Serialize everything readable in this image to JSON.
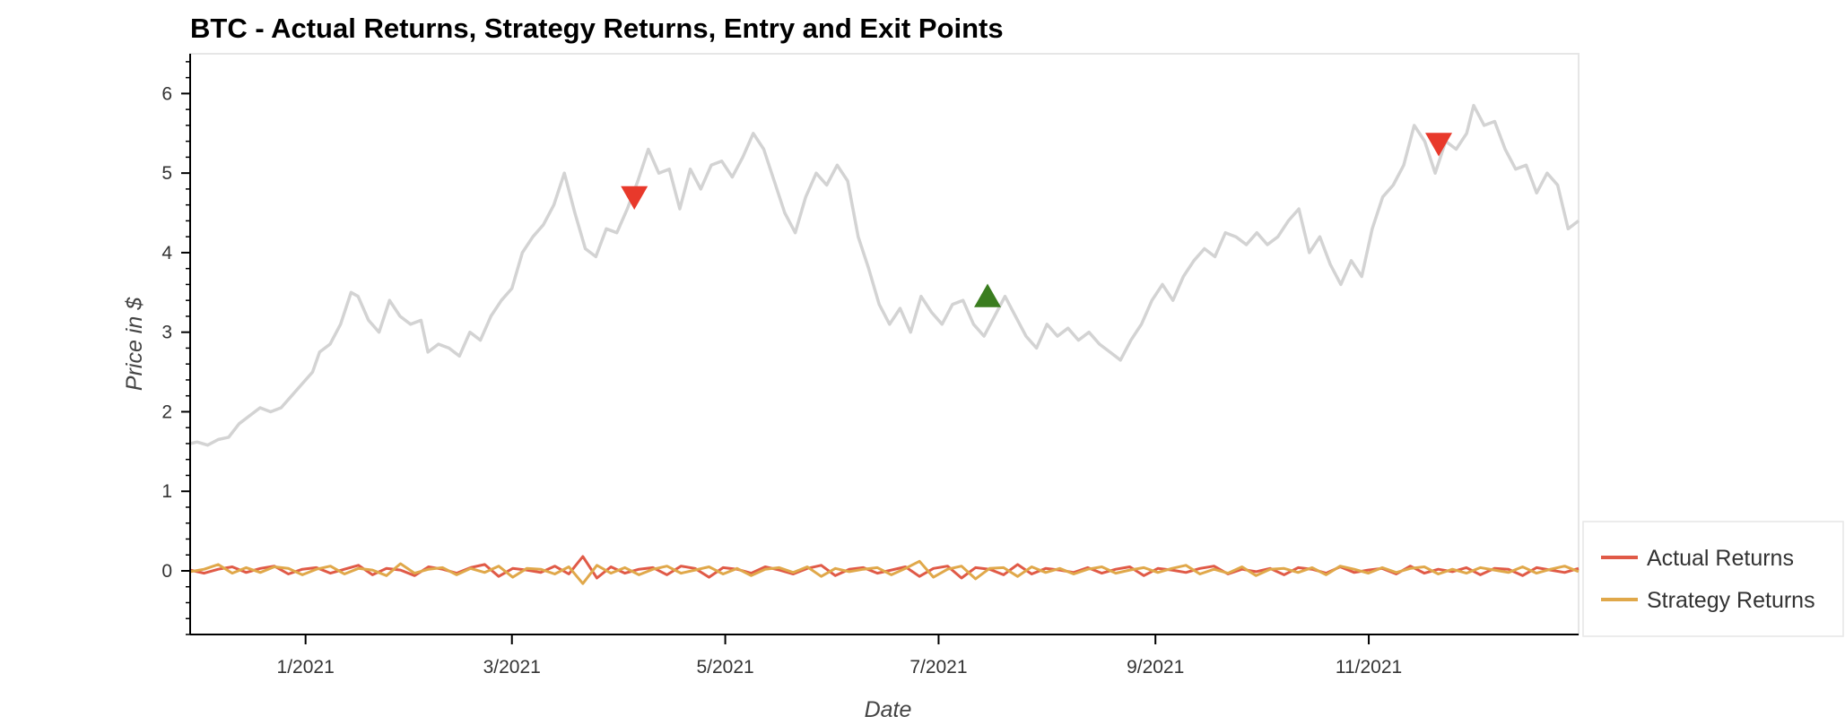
{
  "chart_data": {
    "type": "line",
    "title": "BTC - Actual Returns, Strategy Returns, Entry and Exit Points",
    "xlabel": "Date",
    "ylabel": "Price in $",
    "xlim": [
      "2020-11-29",
      "2021-12-31"
    ],
    "ylim": [
      -0.8,
      6.5
    ],
    "x_ticks": [
      "2021-01-01",
      "2021-03-01",
      "2021-05-01",
      "2021-07-01",
      "2021-09-01",
      "2021-11-01"
    ],
    "x_tick_labels": [
      "1/2021",
      "3/2021",
      "5/2021",
      "7/2021",
      "9/2021",
      "11/2021"
    ],
    "y_ticks": [
      0,
      1,
      2,
      3,
      4,
      5,
      6
    ],
    "y_tick_labels": [
      "0",
      "1",
      "2",
      "3",
      "4",
      "5",
      "6"
    ],
    "y_minor_step": 0.2,
    "grid": false,
    "legend_position": "bottom-right, outside plot",
    "price_series": {
      "color": "#d3d3d3",
      "points": [
        [
          "2020-11-29",
          1.6
        ],
        [
          "2020-12-01",
          1.62
        ],
        [
          "2020-12-04",
          1.58
        ],
        [
          "2020-12-07",
          1.65
        ],
        [
          "2020-12-10",
          1.68
        ],
        [
          "2020-12-13",
          1.85
        ],
        [
          "2020-12-16",
          1.95
        ],
        [
          "2020-12-19",
          2.05
        ],
        [
          "2020-12-22",
          2.0
        ],
        [
          "2020-12-25",
          2.05
        ],
        [
          "2020-12-28",
          2.2
        ],
        [
          "2020-12-31",
          2.35
        ],
        [
          "2021-01-03",
          2.5
        ],
        [
          "2021-01-05",
          2.75
        ],
        [
          "2021-01-08",
          2.85
        ],
        [
          "2021-01-11",
          3.1
        ],
        [
          "2021-01-14",
          3.5
        ],
        [
          "2021-01-16",
          3.45
        ],
        [
          "2021-01-19",
          3.15
        ],
        [
          "2021-01-22",
          3.0
        ],
        [
          "2021-01-25",
          3.4
        ],
        [
          "2021-01-28",
          3.2
        ],
        [
          "2021-01-31",
          3.1
        ],
        [
          "2021-02-03",
          3.15
        ],
        [
          "2021-02-05",
          2.75
        ],
        [
          "2021-02-08",
          2.85
        ],
        [
          "2021-02-11",
          2.8
        ],
        [
          "2021-02-14",
          2.7
        ],
        [
          "2021-02-17",
          3.0
        ],
        [
          "2021-02-20",
          2.9
        ],
        [
          "2021-02-23",
          3.2
        ],
        [
          "2021-02-26",
          3.4
        ],
        [
          "2021-03-01",
          3.55
        ],
        [
          "2021-03-04",
          4.0
        ],
        [
          "2021-03-07",
          4.2
        ],
        [
          "2021-03-10",
          4.35
        ],
        [
          "2021-03-13",
          4.6
        ],
        [
          "2021-03-16",
          5.0
        ],
        [
          "2021-03-19",
          4.5
        ],
        [
          "2021-03-22",
          4.05
        ],
        [
          "2021-03-25",
          3.95
        ],
        [
          "2021-03-28",
          4.3
        ],
        [
          "2021-03-31",
          4.25
        ],
        [
          "2021-04-03",
          4.55
        ],
        [
          "2021-04-06",
          4.9
        ],
        [
          "2021-04-09",
          5.3
        ],
        [
          "2021-04-12",
          5.0
        ],
        [
          "2021-04-15",
          5.05
        ],
        [
          "2021-04-18",
          4.55
        ],
        [
          "2021-04-21",
          5.05
        ],
        [
          "2021-04-24",
          4.8
        ],
        [
          "2021-04-27",
          5.1
        ],
        [
          "2021-04-30",
          5.15
        ],
        [
          "2021-05-03",
          4.95
        ],
        [
          "2021-05-06",
          5.2
        ],
        [
          "2021-05-09",
          5.5
        ],
        [
          "2021-05-12",
          5.3
        ],
        [
          "2021-05-15",
          4.9
        ],
        [
          "2021-05-18",
          4.5
        ],
        [
          "2021-05-21",
          4.25
        ],
        [
          "2021-05-24",
          4.7
        ],
        [
          "2021-05-27",
          5.0
        ],
        [
          "2021-05-30",
          4.85
        ],
        [
          "2021-06-02",
          5.1
        ],
        [
          "2021-06-05",
          4.9
        ],
        [
          "2021-06-08",
          4.2
        ],
        [
          "2021-06-11",
          3.8
        ],
        [
          "2021-06-14",
          3.35
        ],
        [
          "2021-06-17",
          3.1
        ],
        [
          "2021-06-20",
          3.3
        ],
        [
          "2021-06-23",
          3.0
        ],
        [
          "2021-06-26",
          3.45
        ],
        [
          "2021-06-29",
          3.25
        ],
        [
          "2021-07-02",
          3.1
        ],
        [
          "2021-07-05",
          3.35
        ],
        [
          "2021-07-08",
          3.4
        ],
        [
          "2021-07-11",
          3.1
        ],
        [
          "2021-07-14",
          2.95
        ],
        [
          "2021-07-17",
          3.2
        ],
        [
          "2021-07-20",
          3.45
        ],
        [
          "2021-07-23",
          3.2
        ],
        [
          "2021-07-26",
          2.95
        ],
        [
          "2021-07-29",
          2.8
        ],
        [
          "2021-08-01",
          3.1
        ],
        [
          "2021-08-04",
          2.95
        ],
        [
          "2021-08-07",
          3.05
        ],
        [
          "2021-08-10",
          2.9
        ],
        [
          "2021-08-13",
          3.0
        ],
        [
          "2021-08-16",
          2.85
        ],
        [
          "2021-08-19",
          2.75
        ],
        [
          "2021-08-22",
          2.65
        ],
        [
          "2021-08-25",
          2.9
        ],
        [
          "2021-08-28",
          3.1
        ],
        [
          "2021-08-31",
          3.4
        ],
        [
          "2021-09-03",
          3.6
        ],
        [
          "2021-09-06",
          3.4
        ],
        [
          "2021-09-09",
          3.7
        ],
        [
          "2021-09-12",
          3.9
        ],
        [
          "2021-09-15",
          4.05
        ],
        [
          "2021-09-18",
          3.95
        ],
        [
          "2021-09-21",
          4.25
        ],
        [
          "2021-09-24",
          4.2
        ],
        [
          "2021-09-27",
          4.1
        ],
        [
          "2021-09-30",
          4.25
        ],
        [
          "2021-10-03",
          4.1
        ],
        [
          "2021-10-06",
          4.2
        ],
        [
          "2021-10-09",
          4.4
        ],
        [
          "2021-10-12",
          4.55
        ],
        [
          "2021-10-15",
          4.0
        ],
        [
          "2021-10-18",
          4.2
        ],
        [
          "2021-10-21",
          3.85
        ],
        [
          "2021-10-24",
          3.6
        ],
        [
          "2021-10-27",
          3.9
        ],
        [
          "2021-10-30",
          3.7
        ],
        [
          "2021-11-02",
          4.3
        ],
        [
          "2021-11-05",
          4.7
        ],
        [
          "2021-11-08",
          4.85
        ],
        [
          "2021-11-11",
          5.1
        ],
        [
          "2021-11-14",
          5.6
        ],
        [
          "2021-11-17",
          5.4
        ],
        [
          "2021-11-20",
          5.0
        ],
        [
          "2021-11-23",
          5.4
        ],
        [
          "2021-11-26",
          5.3
        ],
        [
          "2021-11-29",
          5.5
        ],
        [
          "2021-12-01",
          5.85
        ],
        [
          "2021-12-04",
          5.6
        ],
        [
          "2021-12-07",
          5.65
        ],
        [
          "2021-12-10",
          5.3
        ],
        [
          "2021-12-13",
          5.05
        ],
        [
          "2021-12-16",
          5.1
        ],
        [
          "2021-12-19",
          4.75
        ],
        [
          "2021-12-22",
          5.0
        ],
        [
          "2021-12-25",
          4.85
        ],
        [
          "2021-12-28",
          4.3
        ],
        [
          "2021-12-31",
          4.4
        ]
      ]
    },
    "series": [
      {
        "name": "Actual Returns",
        "color": "#e05a47",
        "x_start": "2020-11-29",
        "x_end": "2021-12-31",
        "values": [
          0.01,
          -0.03,
          0.02,
          0.05,
          -0.02,
          0.03,
          0.06,
          -0.04,
          0.02,
          0.04,
          -0.03,
          0.02,
          0.07,
          -0.05,
          0.03,
          0.01,
          -0.06,
          0.05,
          0.02,
          -0.03,
          0.04,
          0.08,
          -0.07,
          0.03,
          0.01,
          -0.02,
          0.06,
          -0.04,
          0.18,
          -0.09,
          0.05,
          -0.03,
          0.02,
          0.04,
          -0.05,
          0.06,
          0.03,
          -0.08,
          0.04,
          0.02,
          -0.03,
          0.05,
          0.01,
          -0.04,
          0.03,
          0.07,
          -0.06,
          0.02,
          0.04,
          -0.03,
          0.01,
          0.05,
          -0.07,
          0.03,
          0.06,
          -0.09,
          0.04,
          0.02,
          -0.05,
          0.08,
          -0.04,
          0.03,
          0.01,
          -0.02,
          0.04,
          -0.03,
          0.02,
          0.05,
          -0.06,
          0.03,
          0.01,
          -0.02,
          0.03,
          0.06,
          -0.04,
          0.02,
          -0.01,
          0.03,
          -0.05,
          0.04,
          0.02,
          -0.03,
          0.05,
          -0.02,
          0.01,
          0.03,
          -0.04,
          0.06,
          -0.03,
          0.02,
          -0.01,
          0.04,
          -0.05,
          0.03,
          0.02,
          -0.06,
          0.04,
          0.01,
          -0.02,
          0.03
        ]
      },
      {
        "name": "Strategy Returns",
        "color": "#e0a84a",
        "x_start": "2020-11-29",
        "x_end": "2021-12-31",
        "values": [
          -0.01,
          0.02,
          0.08,
          -0.03,
          0.04,
          -0.02,
          0.05,
          0.03,
          -0.05,
          0.02,
          0.06,
          -0.04,
          0.03,
          0.01,
          -0.06,
          0.09,
          -0.03,
          0.02,
          0.04,
          -0.05,
          0.03,
          -0.02,
          0.06,
          -0.08,
          0.03,
          0.02,
          -0.04,
          0.05,
          -0.16,
          0.07,
          -0.03,
          0.04,
          -0.05,
          0.02,
          0.06,
          -0.03,
          0.01,
          0.05,
          -0.04,
          0.03,
          -0.06,
          0.02,
          0.04,
          -0.02,
          0.05,
          -0.07,
          0.03,
          -0.01,
          0.02,
          0.04,
          -0.05,
          0.03,
          0.12,
          -0.08,
          0.02,
          0.06,
          -0.1,
          0.03,
          0.04,
          -0.07,
          0.05,
          -0.02,
          0.03,
          -0.04,
          0.02,
          0.05,
          -0.03,
          0.01,
          0.04,
          -0.02,
          0.03,
          0.07,
          -0.04,
          0.02,
          -0.03,
          0.05,
          -0.06,
          0.02,
          0.03,
          -0.02,
          0.04,
          -0.05,
          0.06,
          0.02,
          -0.03,
          0.04,
          -0.02,
          0.03,
          0.05,
          -0.04,
          0.02,
          -0.03,
          0.04,
          0.01,
          -0.02,
          0.05,
          -0.03,
          0.02,
          0.06,
          -0.01
        ]
      }
    ],
    "markers": [
      {
        "type": "exit",
        "shape": "triangle-down",
        "color": "#e8392b",
        "x": "2021-04-05",
        "y": 4.7
      },
      {
        "type": "entry",
        "shape": "triangle-up",
        "color": "#3a7d1f",
        "x": "2021-07-15",
        "y": 3.45
      },
      {
        "type": "exit",
        "shape": "triangle-down",
        "color": "#e8392b",
        "x": "2021-11-21",
        "y": 5.37
      }
    ]
  }
}
